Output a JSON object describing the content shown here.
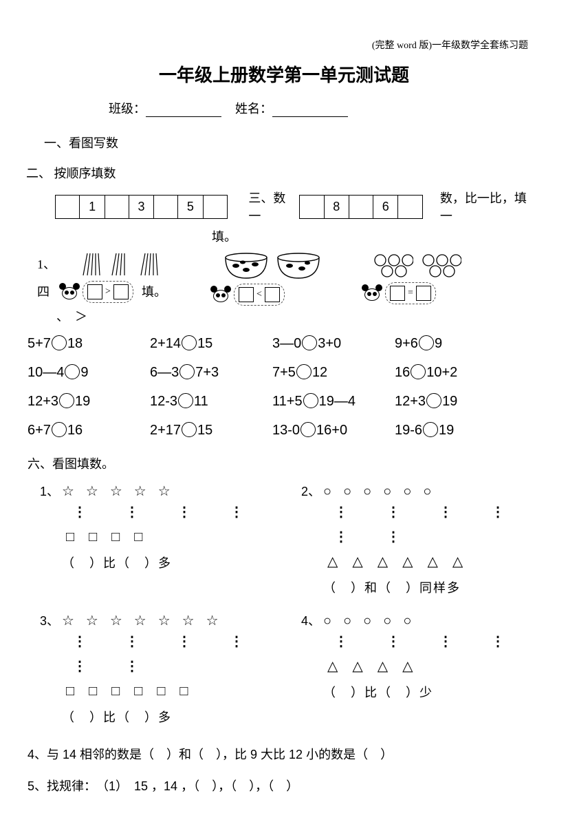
{
  "header_note": "(完整 word 版)一年级数学全套练习题",
  "title": "一年级上册数学第一单元测试题",
  "class_label": "班级：",
  "name_label": "姓名：",
  "section1": "一、看图写数",
  "section2": "二、 按顺序填数",
  "seq1": [
    "",
    "1",
    "",
    "3",
    "",
    "5",
    ""
  ],
  "inline3": "三、数一",
  "seq2": [
    "",
    "8",
    "",
    "6",
    ""
  ],
  "tail3": "数，比一比，填一",
  "fill_label": "填。",
  "pic_qnum": "1、",
  "four_label": "四",
  "fill_text": "填。",
  "ltgt_trail": "、　＞",
  "comp": {
    "gt": ">",
    "lt": "<",
    "eq": "="
  },
  "eq_rows": [
    [
      "5+7〇18",
      "2+14〇15",
      "3—0〇3+0",
      "9+6〇9"
    ],
    [
      "10—4〇9",
      "6—3〇7+3",
      "7+5〇12",
      "16〇10+2"
    ],
    [
      "12+3〇19",
      "12-3〇11",
      "11+5〇19—4",
      "12+3〇19"
    ],
    [
      "6+7〇16",
      "2+17〇15",
      "13-0〇16+0",
      "19-6〇19"
    ]
  ],
  "section6": "六、看图填数。",
  "shape_q": [
    {
      "n": "1、",
      "top": "☆ ☆ ☆ ☆ ☆",
      "mid": "⋮　⋮　⋮　⋮",
      "bot": "□ □ □ □",
      "ans": "（　）比（　）多"
    },
    {
      "n": "2、",
      "top": "○ ○ ○ ○ ○ ○",
      "mid": "⋮　⋮　⋮　⋮　⋮　⋮",
      "bot": "△ △ △ △ △ △",
      "ans": "（　）和（　）同样多"
    },
    {
      "n": "3、",
      "top": "☆ ☆ ☆ ☆ ☆ ☆ ☆",
      "mid": "⋮　⋮　⋮　⋮　⋮　⋮",
      "bot": "□ □ □ □ □ □",
      "ans": "（　）比（　）多"
    },
    {
      "n": "4、",
      "top": "○ ○ ○ ○ ○",
      "mid": "⋮　⋮　⋮　⋮",
      "bot": "△ △ △ △",
      "ans": "（　）比（　）少"
    }
  ],
  "q4": "4、与 14 相邻的数是（　）和（　），比 9 大比 12 小的数是（　）",
  "q5": "5、找规律：　（1）　15 ，14 ，（　），（　），（　）"
}
